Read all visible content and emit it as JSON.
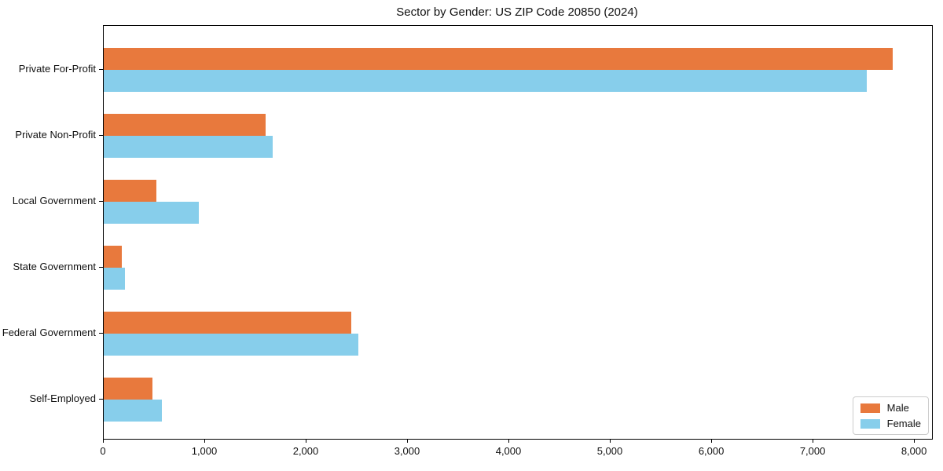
{
  "chart_data": {
    "type": "bar",
    "orientation": "horizontal",
    "title": "Sector by Gender: US ZIP Code 20850 (2024)",
    "categories": [
      "Private For-Profit",
      "Private Non-Profit",
      "Local Government",
      "State Government",
      "Federal Government",
      "Self-Employed"
    ],
    "series": [
      {
        "name": "Male",
        "color": "#E8793D",
        "values": [
          7780,
          1600,
          520,
          180,
          2440,
          480
        ]
      },
      {
        "name": "Female",
        "color": "#87CEEB",
        "values": [
          7530,
          1670,
          940,
          210,
          2510,
          570
        ]
      }
    ],
    "xlabel": "",
    "ylabel": "",
    "xlim": [
      0,
      8170
    ],
    "x_ticks": [
      0,
      1000,
      2000,
      3000,
      4000,
      5000,
      6000,
      7000,
      8000
    ],
    "x_tick_labels": [
      "0",
      "1,000",
      "2,000",
      "3,000",
      "4,000",
      "5,000",
      "6,000",
      "7,000",
      "8,000"
    ],
    "grid": false,
    "legend_position": "lower right"
  }
}
